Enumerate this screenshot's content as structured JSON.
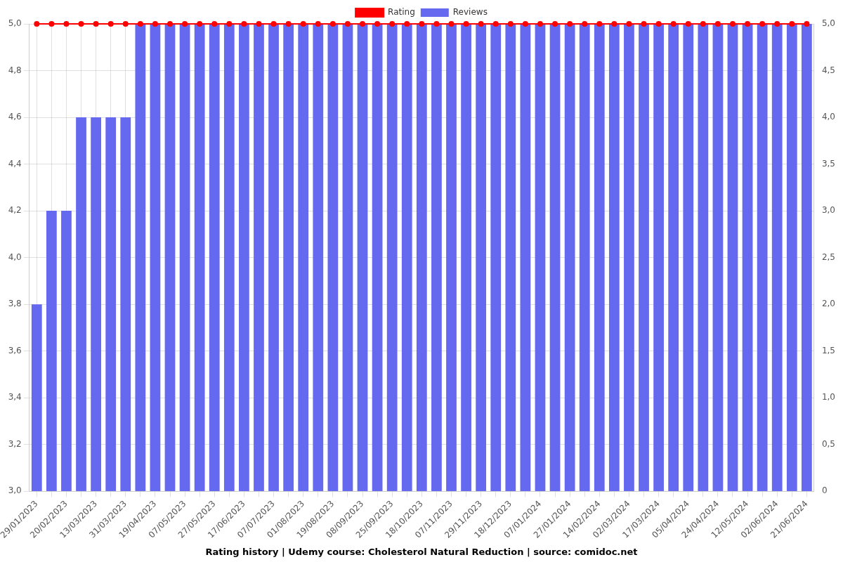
{
  "chart_data": {
    "type": "bar",
    "title": "Rating history | Udemy course: Cholesterol Natural Reduction | source: comidoc.net",
    "categories": [
      "29/01/2023",
      null,
      "20/02/2023",
      null,
      "13/03/2023",
      null,
      "31/03/2023",
      null,
      "19/04/2023",
      null,
      "07/05/2023",
      null,
      "27/05/2023",
      null,
      "17/06/2023",
      null,
      "07/07/2023",
      null,
      "01/08/2023",
      null,
      "19/08/2023",
      null,
      "08/09/2023",
      null,
      "25/09/2023",
      null,
      "18/10/2023",
      null,
      "07/11/2023",
      null,
      "29/11/2023",
      null,
      "18/12/2023",
      null,
      "07/01/2024",
      null,
      "27/01/2024",
      null,
      "14/02/2024",
      null,
      "02/03/2024",
      null,
      "17/03/2024",
      null,
      "05/04/2024",
      null,
      "24/04/2024",
      null,
      "12/05/2024",
      null,
      "02/06/2024",
      null,
      "21/06/2024"
    ],
    "series": [
      {
        "name": "Rating",
        "type": "line",
        "color": "#ff0000",
        "marker": "circle",
        "values": [
          5.0,
          5.0,
          5.0,
          5.0,
          5.0,
          5.0,
          5.0,
          5.0,
          5.0,
          5.0,
          5.0,
          5.0,
          5.0,
          5.0,
          5.0,
          5.0,
          5.0,
          5.0,
          5.0,
          5.0,
          5.0,
          5.0,
          5.0,
          5.0,
          5.0,
          5.0,
          5.0,
          5.0,
          5.0,
          5.0,
          5.0,
          5.0,
          5.0,
          5.0,
          5.0,
          5.0,
          5.0,
          5.0,
          5.0,
          5.0,
          5.0,
          5.0,
          5.0,
          5.0,
          5.0,
          5.0,
          5.0,
          5.0,
          5.0,
          5.0,
          5.0,
          5.0,
          5.0
        ]
      },
      {
        "name": "Reviews",
        "type": "bar",
        "color": "#6569ef",
        "axis": "y2",
        "values": [
          2,
          3,
          3,
          4,
          4,
          4,
          4,
          5,
          5,
          5,
          5,
          5,
          5,
          5,
          5,
          5,
          5,
          5,
          5,
          5,
          5,
          5,
          5,
          5,
          5,
          5,
          5,
          5,
          5,
          5,
          5,
          5,
          5,
          5,
          5,
          5,
          5,
          5,
          5,
          5,
          5,
          5,
          5,
          5,
          5,
          5,
          5,
          5,
          5,
          5,
          5,
          5,
          5
        ]
      }
    ],
    "ylim": [
      3.0,
      5.0
    ],
    "yticks": [
      {
        "value": 3.0,
        "label": "3,0"
      },
      {
        "value": 3.2,
        "label": "3,2"
      },
      {
        "value": 3.4,
        "label": "3,4"
      },
      {
        "value": 3.6,
        "label": "3,6"
      },
      {
        "value": 3.8,
        "label": "3,8"
      },
      {
        "value": 4.0,
        "label": "4,0"
      },
      {
        "value": 4.2,
        "label": "4,2"
      },
      {
        "value": 4.4,
        "label": "4,4"
      },
      {
        "value": 4.6,
        "label": "4,6"
      },
      {
        "value": 4.8,
        "label": "4,8"
      },
      {
        "value": 5.0,
        "label": "5,0"
      }
    ],
    "y2lim": [
      0,
      5
    ],
    "y2ticks": [
      0,
      {
        "value": 0.5,
        "label": "0,5"
      },
      {
        "value": 1.0,
        "label": "1,0"
      },
      {
        "value": 1.5,
        "label": "1,5"
      },
      {
        "value": 2.0,
        "label": "2,0"
      },
      {
        "value": 2.5,
        "label": "2,5"
      },
      {
        "value": 3.0,
        "label": "3,0"
      },
      {
        "value": 3.5,
        "label": "3,5"
      },
      {
        "value": 4.0,
        "label": "4,0"
      },
      {
        "value": 4.5,
        "label": "4,5"
      },
      {
        "value": 5.0,
        "label": "5,0"
      }
    ],
    "grid": true,
    "legend": "top"
  }
}
